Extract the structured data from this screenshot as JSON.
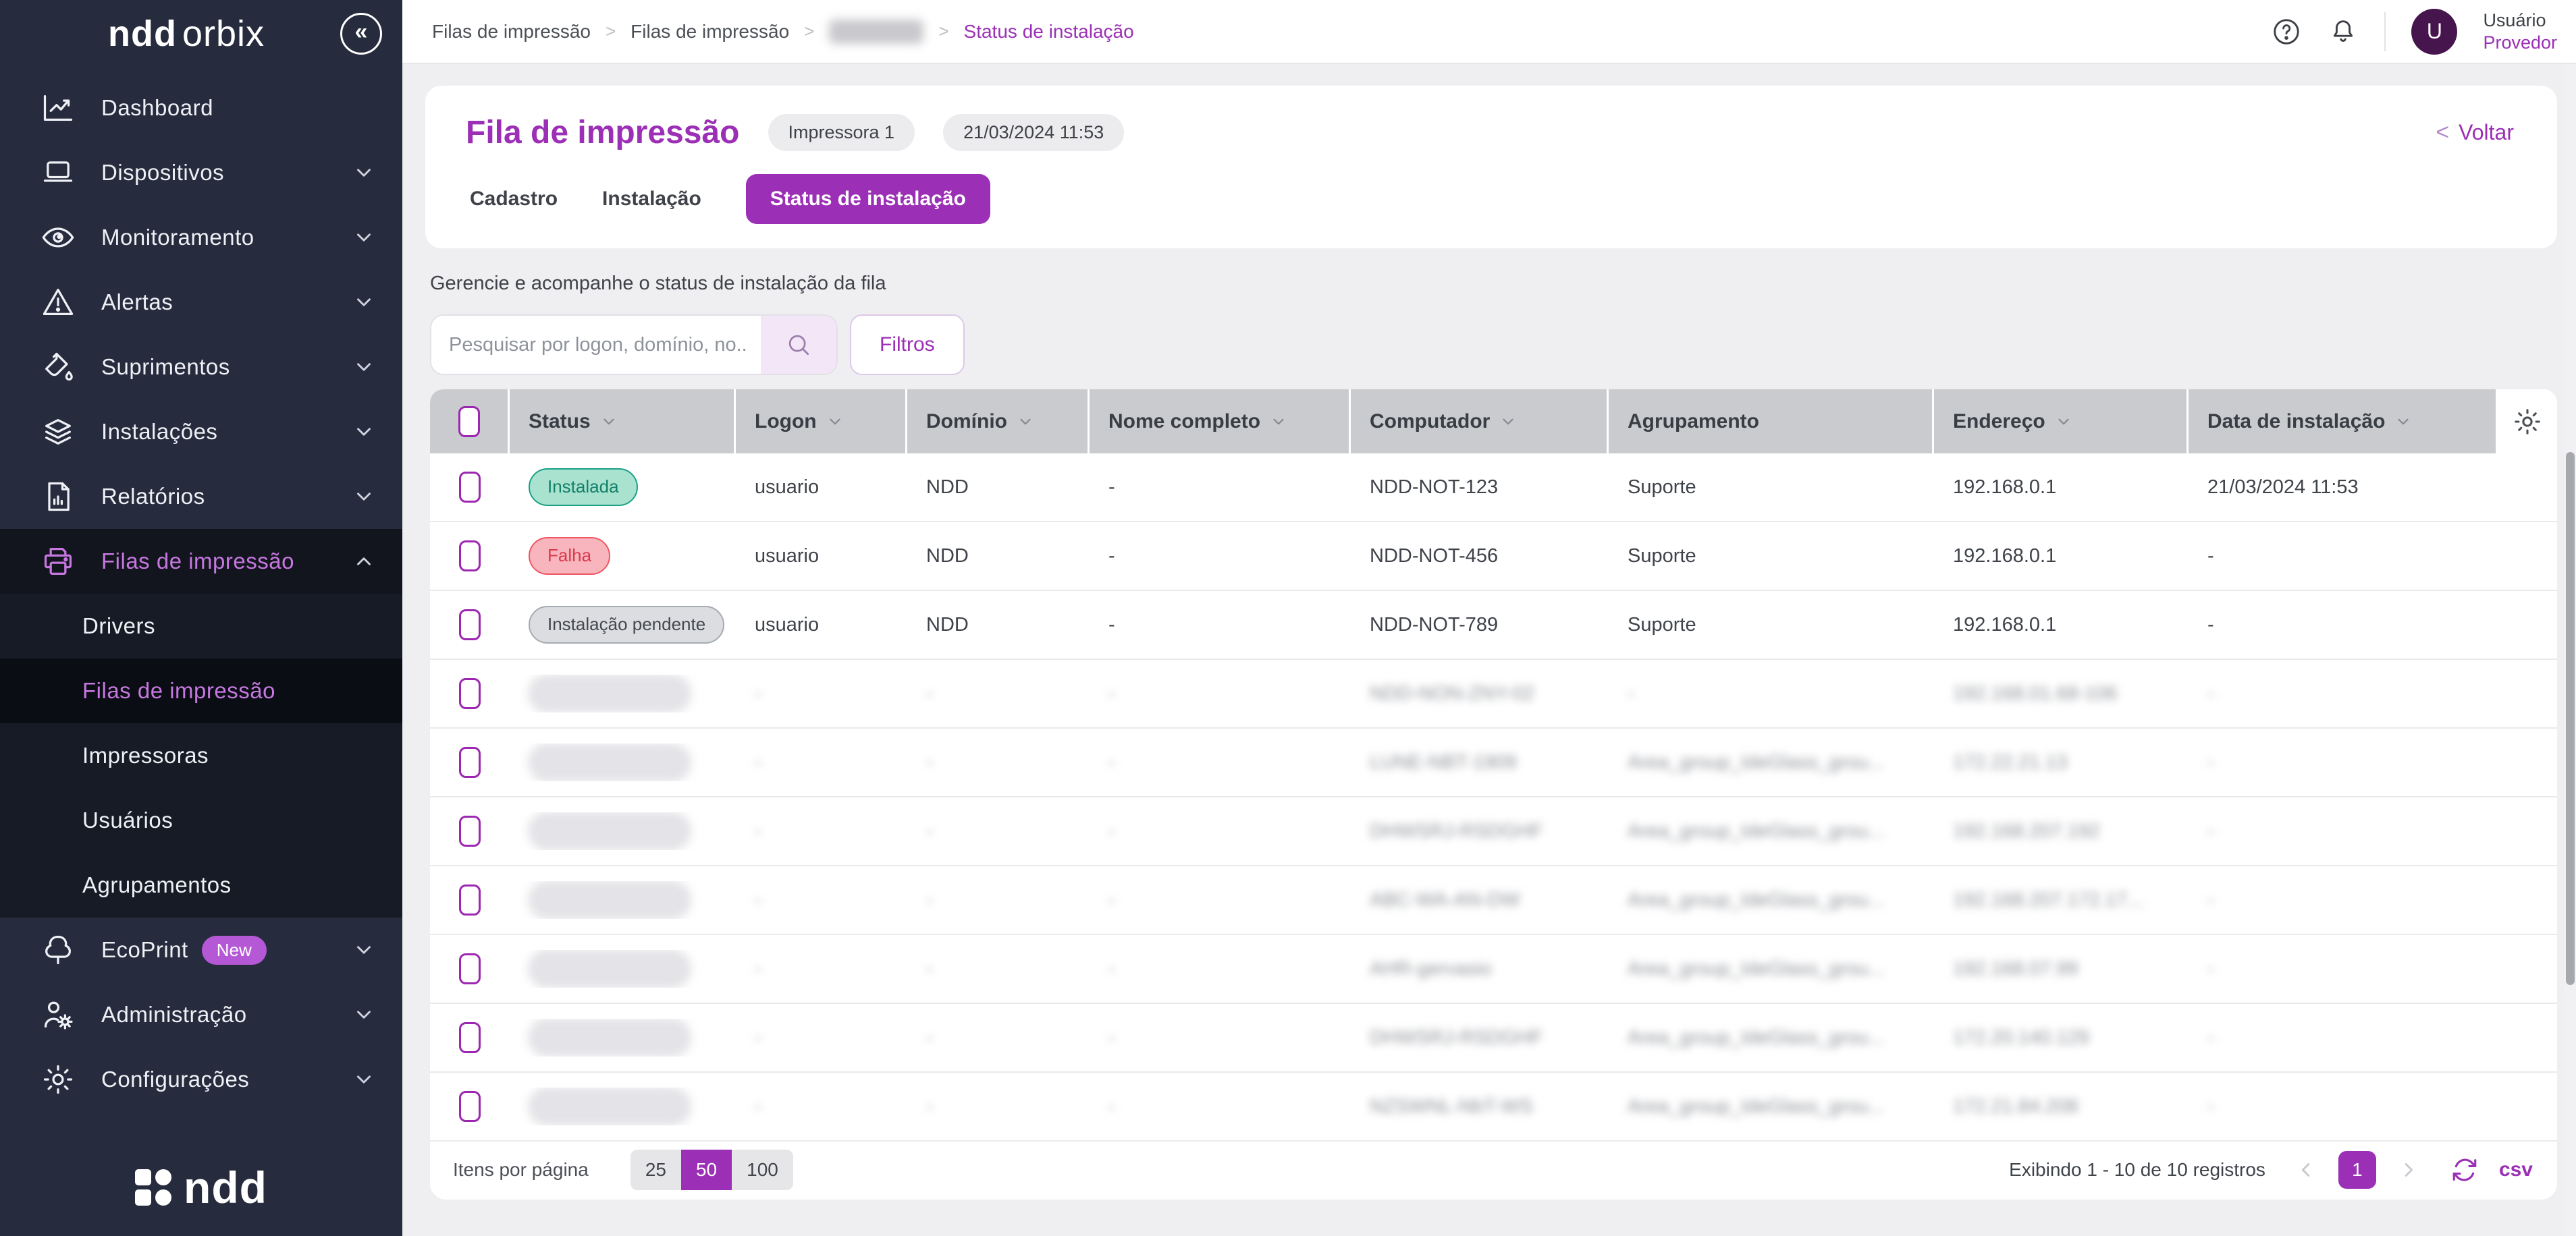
{
  "colors": {
    "accent": "#9b2fb5",
    "sidebar_bg": "#262c3d",
    "sidebar_active_text": "#c678e0",
    "table_header_bg": "#c9cbce",
    "success_bg": "#a9e3cf",
    "success_text": "#14806a",
    "error_bg": "#f9b5bd",
    "error_text": "#d93a4b",
    "neutral_bg": "#dcdde0",
    "neutral_text": "#43474e",
    "avatar_bg": "#46154d",
    "new_badge_bg": "#b558d6"
  },
  "icons": {
    "collapse": "«",
    "help": "?",
    "bell": "bell",
    "search": "magnifier",
    "refresh": "circular-arrows",
    "settings_column": "gear"
  },
  "sidebar": {
    "logo_bold": "ndd",
    "logo_light": "orbix",
    "items": [
      {
        "label": "Dashboard",
        "icon": "chart-icon",
        "chevron": false
      },
      {
        "label": "Dispositivos",
        "icon": "laptop-icon",
        "chevron": true
      },
      {
        "label": "Monitoramento",
        "icon": "eye-icon",
        "chevron": true
      },
      {
        "label": "Alertas",
        "icon": "alert-triangle-icon",
        "chevron": true
      },
      {
        "label": "Suprimentos",
        "icon": "ink-icon",
        "chevron": true
      },
      {
        "label": "Instalações",
        "icon": "layers-icon",
        "chevron": true
      },
      {
        "label": "Relatórios",
        "icon": "report-icon",
        "chevron": true
      }
    ],
    "group": {
      "label": "Filas de impressão",
      "icon": "printer-icon",
      "expanded": true,
      "subitems": [
        {
          "label": "Drivers",
          "active": false
        },
        {
          "label": "Filas de impressão",
          "active": true
        },
        {
          "label": "Impressoras",
          "active": false
        },
        {
          "label": "Usuários",
          "active": false
        },
        {
          "label": "Agrupamentos",
          "active": false
        }
      ]
    },
    "items_bottom": [
      {
        "label": "EcoPrint",
        "badge": "New",
        "icon": "tree-icon",
        "chevron": true
      },
      {
        "label": "Administração",
        "icon": "user-gear-icon",
        "chevron": true
      },
      {
        "label": "Configurações",
        "icon": "gear-icon",
        "chevron": true
      }
    ],
    "footer_logo": "ndd"
  },
  "topbar": {
    "breadcrumb": {
      "item1": "Filas de impressão",
      "item2": "Filas de impressão",
      "item3_blurred": "",
      "item4": "Status de instalação"
    },
    "user": {
      "initial": "U",
      "name": "Usuário",
      "role": "Provedor"
    }
  },
  "header": {
    "title": "Fila de impressão",
    "badge1": "Impressora 1",
    "badge2": "21/03/2024 11:53",
    "back_label": "Voltar",
    "tabs": [
      {
        "label": "Cadastro",
        "active": false
      },
      {
        "label": "Instalação",
        "active": false
      },
      {
        "label": "Status de instalação",
        "active": true
      }
    ]
  },
  "subtitle": "Gerencie e acompanhe o status de instalação da fila",
  "search": {
    "placeholder": "Pesquisar por logon, domínio, no...",
    "filters_label": "Filtros"
  },
  "table": {
    "columns": [
      {
        "label": "Status",
        "sortable": true
      },
      {
        "label": "Logon",
        "sortable": true
      },
      {
        "label": "Domínio",
        "sortable": true
      },
      {
        "label": "Nome completo",
        "sortable": true
      },
      {
        "label": "Computador",
        "sortable": true
      },
      {
        "label": "Agrupamento",
        "sortable": false
      },
      {
        "label": "Endereço",
        "sortable": true
      },
      {
        "label": "Data de instalação",
        "sortable": true
      }
    ],
    "rows": [
      {
        "status": "Instalada",
        "status_type": "success",
        "logon": "usuario",
        "dominio": "NDD",
        "nome": "-",
        "computador": "NDD-NOT-123",
        "agrupamento": "Suporte",
        "endereco": "192.168.0.1",
        "data": "21/03/2024 11:53",
        "blurred": false
      },
      {
        "status": "Falha",
        "status_type": "error",
        "logon": "usuario",
        "dominio": "NDD",
        "nome": "-",
        "computador": "NDD-NOT-456",
        "agrupamento": "Suporte",
        "endereco": "192.168.0.1",
        "data": "-",
        "blurred": false
      },
      {
        "status": "Instalação pendente",
        "status_type": "neutral",
        "logon": "usuario",
        "dominio": "NDD",
        "nome": "-",
        "computador": "NDD-NOT-789",
        "agrupamento": "Suporte",
        "endereco": "192.168.0.1",
        "data": "-",
        "blurred": false
      },
      {
        "status": "",
        "status_type": "blurred",
        "logon": "-",
        "dominio": "-",
        "nome": "-",
        "computador": "NDD-NON-ZNY-02",
        "agrupamento": "-",
        "endereco": "192.168.01.68-106",
        "data": "-",
        "blurred": true
      },
      {
        "status": "",
        "status_type": "blurred",
        "logon": "-",
        "dominio": "-",
        "nome": "-",
        "computador": "LUNE-NBT-1909",
        "agrupamento": "Area_group_IdeGlass_grou...",
        "endereco": "172.22.21.13",
        "data": "-",
        "blurred": true
      },
      {
        "status": "",
        "status_type": "blurred",
        "logon": "-",
        "dominio": "-",
        "nome": "-",
        "computador": "DHWSRJ-RSDGHF",
        "agrupamento": "Area_group_IdeGlass_grou...",
        "endereco": "192.168.207.192",
        "data": "-",
        "blurred": true
      },
      {
        "status": "",
        "status_type": "blurred",
        "logon": "-",
        "dominio": "-",
        "nome": "-",
        "computador": "ABC-WA-AN-DW",
        "agrupamento": "Area_group_IdeGlass_grou...",
        "endereco": "192.168.207.172.17...",
        "data": "-",
        "blurred": true
      },
      {
        "status": "",
        "status_type": "blurred",
        "logon": "-",
        "dominio": "-",
        "nome": "-",
        "computador": "AHR-gervasio",
        "agrupamento": "Area_group_IdeGlass_grou...",
        "endereco": "192.168.07.99",
        "data": "-",
        "blurred": true
      },
      {
        "status": "",
        "status_type": "blurred",
        "logon": "-",
        "dominio": "-",
        "nome": "-",
        "computador": "DHWSRJ-RSDGHF",
        "agrupamento": "Area_group_IdeGlass_grou...",
        "endereco": "172.20.140.129",
        "data": "-",
        "blurred": true
      },
      {
        "status": "",
        "status_type": "blurred",
        "logon": "-",
        "dominio": "-",
        "nome": "-",
        "computador": "NZSWNL-NbT-WS",
        "agrupamento": "Area_group_IdeGlass_grou...",
        "endereco": "172.21.84.208",
        "data": "-",
        "blurred": true
      }
    ]
  },
  "pagination": {
    "items_per_page_label": "Itens por página",
    "options": [
      "25",
      "50",
      "100"
    ],
    "selected": "50",
    "showing": "Exibindo 1 - 10 de 10 registros",
    "current_page": "1",
    "export_label": "csv"
  }
}
